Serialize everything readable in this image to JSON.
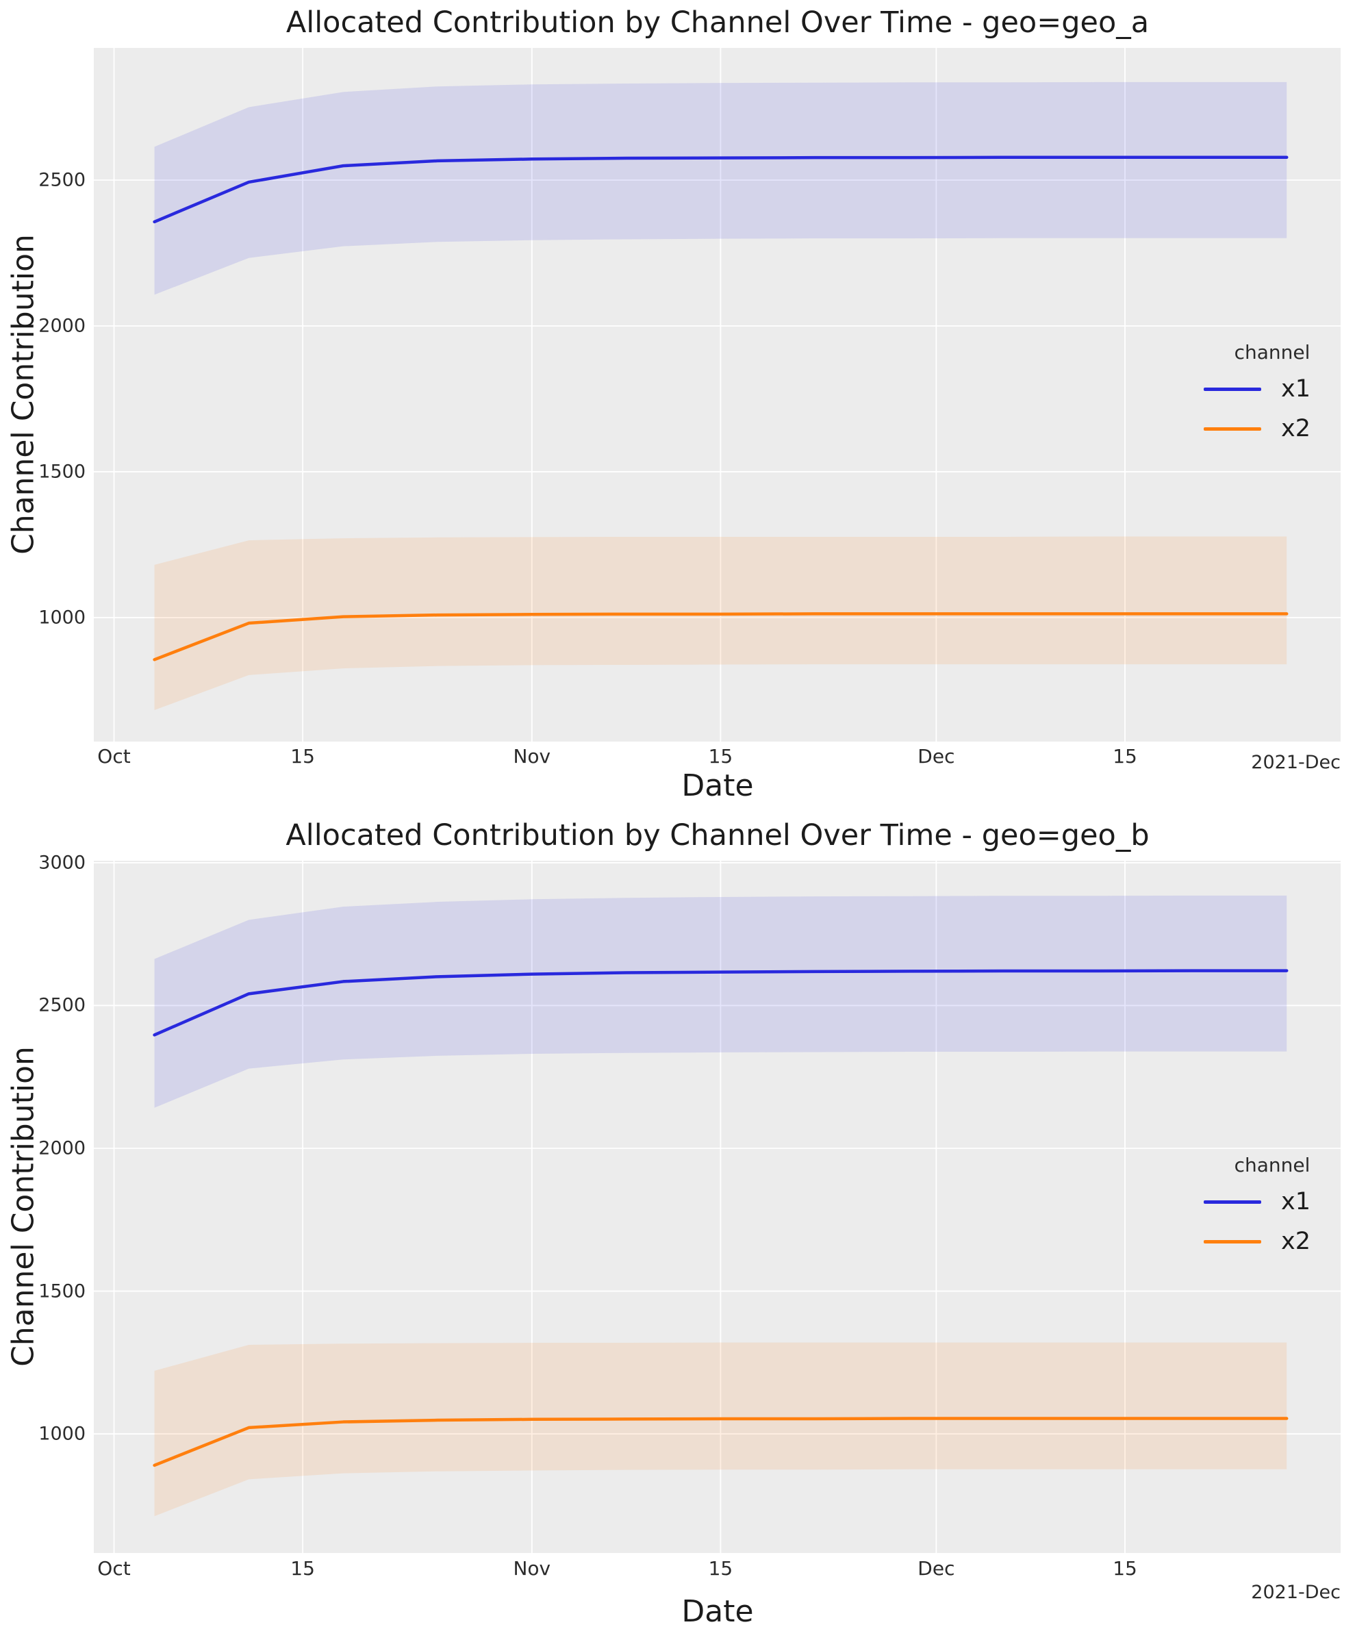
{
  "figure": {
    "background": "#ffffff",
    "plot_background": "#ececec",
    "grid_color": "#ffffff",
    "text_color": "#262626"
  },
  "charts": [
    {
      "title": "Allocated Contribution by Channel Over Time - geo=geo_a",
      "xlabel": "Date",
      "ylabel": "Channel Contribution",
      "offset_text": "2021-Dec",
      "legend": {
        "title": "channel",
        "entries": [
          {
            "label": "x1",
            "color": "#2929dd"
          },
          {
            "label": "x2",
            "color": "#ff7f0e"
          }
        ]
      },
      "chart_data": {
        "type": "line",
        "title": "Allocated Contribution by Channel Over Time - geo=geo_a",
        "xlabel": "Date",
        "ylabel": "Channel Contribution",
        "grid": true,
        "legend_position": "center right",
        "xlim": [
          "2021-09-29T12:00:00",
          "2021-12-31T00:00:00"
        ],
        "ylim": [
          575,
          2953
        ],
        "x_ticks": [
          {
            "date": "2021-10-01",
            "label": "Oct"
          },
          {
            "date": "2021-10-15",
            "label": "15"
          },
          {
            "date": "2021-11-01",
            "label": "Nov"
          },
          {
            "date": "2021-11-15",
            "label": "15"
          },
          {
            "date": "2021-12-01",
            "label": "Dec"
          },
          {
            "date": "2021-12-15",
            "label": "15"
          }
        ],
        "y_ticks": [
          2500,
          2000,
          1500,
          1000
        ],
        "x_dates": [
          "2021-10-04",
          "2021-10-11",
          "2021-10-18",
          "2021-10-25",
          "2021-11-01",
          "2021-11-08",
          "2021-11-15",
          "2021-11-22",
          "2021-11-29",
          "2021-12-06",
          "2021-12-13",
          "2021-12-20",
          "2021-12-27"
        ],
        "series": [
          {
            "name": "x1",
            "color": "#2929dd",
            "band_opacity": 0.12,
            "values": [
              2357,
              2493,
              2549,
              2566,
              2572,
              2575,
              2576,
              2577,
              2577,
              2578,
              2578,
              2578,
              2578
            ],
            "ci_lower": [
              2107,
              2233,
              2273,
              2288,
              2294,
              2297,
              2299,
              2300,
              2300,
              2301,
              2301,
              2301,
              2301
            ],
            "ci_upper": [
              2614,
              2750,
              2802,
              2821,
              2828,
              2831,
              2833,
              2834,
              2835,
              2835,
              2836,
              2836,
              2836
            ]
          },
          {
            "name": "x2",
            "color": "#ff7f0e",
            "band_opacity": 0.12,
            "values": [
              856,
              981,
              1003,
              1009,
              1011,
              1012,
              1012,
              1013,
              1013,
              1013,
              1013,
              1013,
              1013
            ],
            "ci_lower": [
              683,
              803,
              826,
              834,
              837,
              838,
              839,
              840,
              840,
              840,
              840,
              840,
              840
            ],
            "ci_upper": [
              1181,
              1265,
              1272,
              1275,
              1276,
              1277,
              1277,
              1277,
              1277,
              1277,
              1278,
              1278,
              1278
            ]
          }
        ]
      }
    },
    {
      "title": "Allocated Contribution by Channel Over Time - geo=geo_b",
      "xlabel": "Date",
      "ylabel": "Channel Contribution",
      "offset_text": "2021-Dec",
      "legend": {
        "title": "channel",
        "entries": [
          {
            "label": "x1",
            "color": "#2929dd"
          },
          {
            "label": "x2",
            "color": "#ff7f0e"
          }
        ]
      },
      "chart_data": {
        "type": "line",
        "title": "Allocated Contribution by Channel Over Time - geo=geo_b",
        "xlabel": "Date",
        "ylabel": "Channel Contribution",
        "grid": true,
        "legend_position": "center right",
        "xlim": [
          "2021-09-29T12:00:00",
          "2021-12-31T00:00:00"
        ],
        "ylim": [
          583,
          3007
        ],
        "x_ticks": [
          {
            "date": "2021-10-01",
            "label": "Oct"
          },
          {
            "date": "2021-10-15",
            "label": "15"
          },
          {
            "date": "2021-11-01",
            "label": "Nov"
          },
          {
            "date": "2021-11-15",
            "label": "15"
          },
          {
            "date": "2021-12-01",
            "label": "Dec"
          },
          {
            "date": "2021-12-15",
            "label": "15"
          }
        ],
        "y_ticks": [
          3000,
          2500,
          2000,
          1500,
          1000
        ],
        "x_dates": [
          "2021-10-04",
          "2021-10-11",
          "2021-10-18",
          "2021-10-25",
          "2021-11-01",
          "2021-11-08",
          "2021-11-15",
          "2021-11-22",
          "2021-11-29",
          "2021-12-06",
          "2021-12-13",
          "2021-12-20",
          "2021-12-27"
        ],
        "series": [
          {
            "name": "x1",
            "color": "#2929dd",
            "band_opacity": 0.12,
            "values": [
              2397,
              2541,
              2584,
              2601,
              2610,
              2615,
              2617,
              2619,
              2620,
              2621,
              2621,
              2622,
              2622
            ],
            "ci_lower": [
              2142,
              2279,
              2311,
              2324,
              2331,
              2334,
              2336,
              2337,
              2338,
              2338,
              2339,
              2339,
              2339
            ],
            "ci_upper": [
              2663,
              2800,
              2846,
              2863,
              2872,
              2877,
              2880,
              2882,
              2883,
              2884,
              2884,
              2885,
              2885
            ]
          },
          {
            "name": "x2",
            "color": "#ff7f0e",
            "band_opacity": 0.12,
            "values": [
              890,
              1022,
              1042,
              1048,
              1051,
              1052,
              1053,
              1053,
              1054,
              1054,
              1054,
              1054,
              1054
            ],
            "ci_lower": [
              712,
              841,
              862,
              869,
              872,
              874,
              875,
              875,
              876,
              876,
              876,
              876,
              876
            ],
            "ci_upper": [
              1221,
              1312,
              1316,
              1318,
              1319,
              1319,
              1320,
              1320,
              1320,
              1320,
              1320,
              1320,
              1320
            ]
          }
        ]
      }
    }
  ]
}
